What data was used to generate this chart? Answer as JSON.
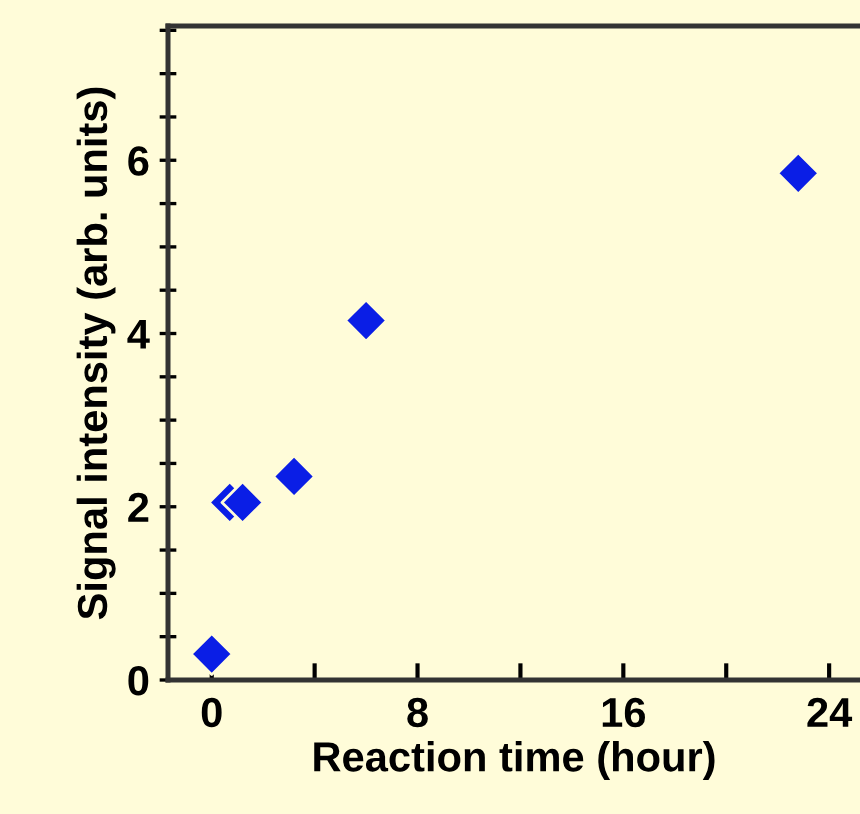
{
  "chart_data": {
    "type": "scatter",
    "xlabel": "Reaction time (hour)",
    "ylabel": "Signal intensity (arb. units)",
    "x": [
      0,
      0.7,
      1.2,
      3.2,
      6,
      22.8
    ],
    "values": [
      0.3,
      2.05,
      2.05,
      2.35,
      4.15,
      5.85
    ],
    "color": "#0a1ee6",
    "marker": "diamond",
    "xlim": [
      -1.7,
      25.2
    ],
    "ylim": [
      0,
      7.55
    ],
    "xticks": [
      0,
      {
        "value": 4,
        "label": null
      },
      8,
      {
        "value": 12,
        "label": null
      },
      16,
      {
        "value": 20,
        "label": null
      },
      24
    ],
    "yticks": [
      0,
      {
        "value": 0.5,
        "label": null
      },
      {
        "value": 1,
        "label": null
      },
      {
        "value": 1.5,
        "label": null
      },
      2,
      {
        "value": 2.5,
        "label": null
      },
      {
        "value": 3,
        "label": null
      },
      {
        "value": 3.5,
        "label": null
      },
      4,
      {
        "value": 4.5,
        "label": null
      },
      {
        "value": 5,
        "label": null
      },
      {
        "value": 5.5,
        "label": null
      },
      6,
      {
        "value": 6.5,
        "label": null
      },
      {
        "value": 7,
        "label": null
      },
      {
        "value": 7.5,
        "label": null
      }
    ],
    "grid": false
  }
}
